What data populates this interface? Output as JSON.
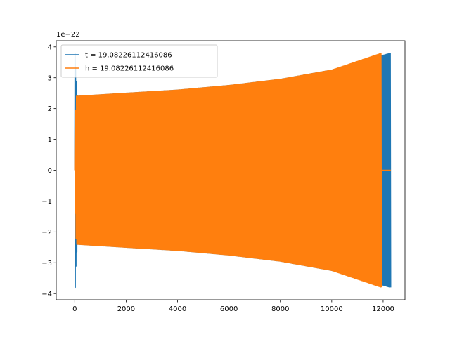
{
  "chart_data": {
    "type": "line",
    "title": "",
    "xlabel": "",
    "ylabel": "",
    "y_offset_label": "1e−22",
    "xlim": [
      -720,
      12850
    ],
    "ylim": [
      -4.2,
      4.2
    ],
    "x_ticks": [
      0,
      2000,
      4000,
      6000,
      8000,
      10000,
      12000
    ],
    "x_tick_labels": [
      "0",
      "2000",
      "4000",
      "6000",
      "8000",
      "10000",
      "12000"
    ],
    "y_ticks": [
      -4,
      -3,
      -2,
      -1,
      0,
      1,
      2,
      3,
      4
    ],
    "y_tick_labels": [
      "−4",
      "−3",
      "−2",
      "−1",
      "0",
      "1",
      "2",
      "3",
      "4"
    ],
    "grid": false,
    "legend_position": "top-left",
    "series": [
      {
        "name": "t = 19.08226112416086",
        "color": "#1f77b4",
        "style": "chirp oscillation",
        "x_start": 0,
        "x_end": 12300,
        "envelope": [
          {
            "x": 0,
            "amplitude": 3.8
          },
          {
            "x": 100,
            "amplitude": 2.4
          },
          {
            "x": 2000,
            "amplitude": 2.5
          },
          {
            "x": 4000,
            "amplitude": 2.6
          },
          {
            "x": 6000,
            "amplitude": 2.75
          },
          {
            "x": 8000,
            "amplitude": 2.95
          },
          {
            "x": 10000,
            "amplitude": 3.25
          },
          {
            "x": 12300,
            "amplitude": 3.8
          }
        ]
      },
      {
        "name": "h = 19.08226112416086",
        "color": "#ff7f0e",
        "style": "chirp oscillation",
        "x_start": 0,
        "x_end": 11950,
        "flat_until": 12300,
        "envelope": [
          {
            "x": 0,
            "amplitude": 1.4
          },
          {
            "x": 60,
            "amplitude": 2.4
          },
          {
            "x": 2000,
            "amplitude": 2.5
          },
          {
            "x": 4000,
            "amplitude": 2.6
          },
          {
            "x": 6000,
            "amplitude": 2.75
          },
          {
            "x": 8000,
            "amplitude": 2.95
          },
          {
            "x": 10000,
            "amplitude": 3.25
          },
          {
            "x": 11950,
            "amplitude": 3.8
          }
        ]
      }
    ]
  }
}
